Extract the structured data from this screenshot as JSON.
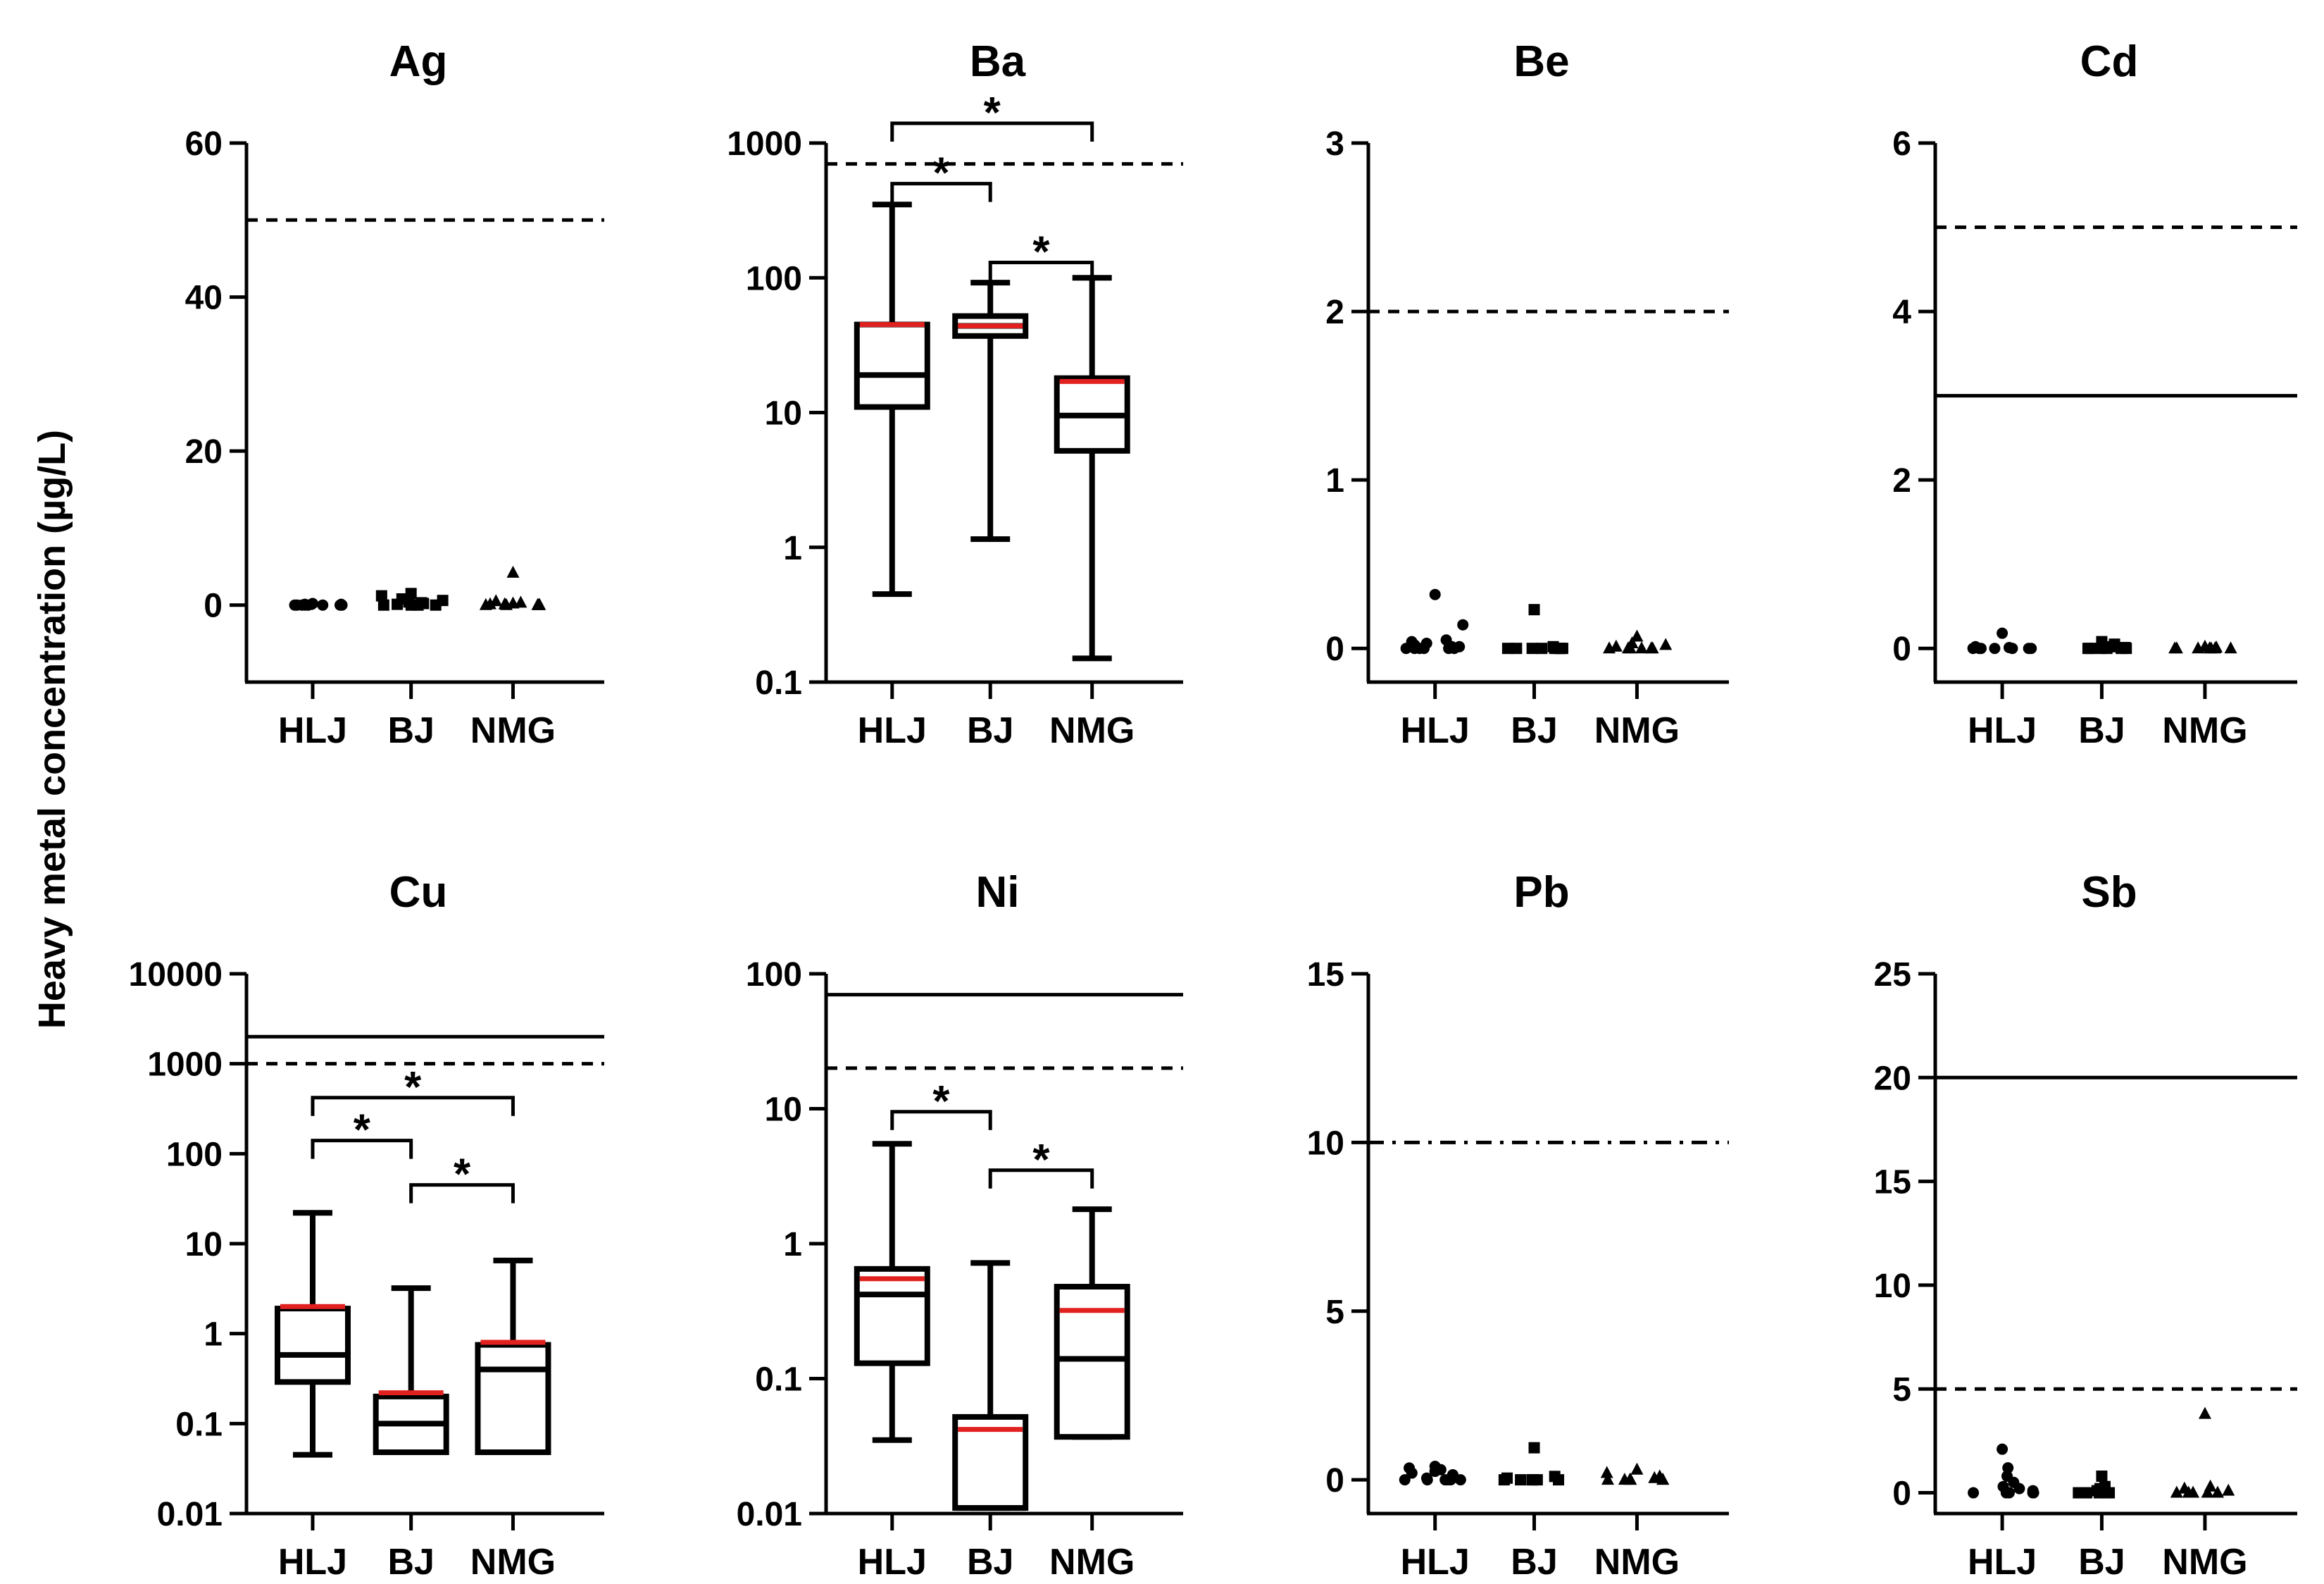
{
  "figure": {
    "ylabel": "Heavy metal concentration (µg/L)"
  },
  "chart_data": [
    {
      "type": "box",
      "title": "Ag",
      "scale": "linear",
      "ylim": [
        -10,
        60
      ],
      "yticks": [
        0,
        20,
        40,
        60
      ],
      "yticklabels": [
        "0",
        "20",
        "40",
        "60"
      ],
      "categories": [
        "HLJ",
        "BJ",
        "NMG"
      ],
      "reference_lines": [
        {
          "value": 50,
          "style": "dashed"
        }
      ],
      "boxes": [],
      "points": [
        {
          "category": "HLJ",
          "marker": "circle",
          "values": [
            0,
            0,
            0,
            0,
            0,
            0,
            0,
            0,
            0.1,
            0.1,
            0.1,
            0.2
          ]
        },
        {
          "category": "BJ",
          "marker": "square",
          "values": [
            0,
            0,
            0,
            0,
            0.1,
            0.2,
            0.3,
            0.4,
            0.6,
            0.8,
            1.2,
            1.5
          ]
        },
        {
          "category": "NMG",
          "marker": "triangle",
          "values": [
            0,
            0,
            0,
            0,
            0,
            0.1,
            0.1,
            0.2,
            0.3,
            0.5,
            4.2
          ]
        }
      ],
      "significance": []
    },
    {
      "type": "box",
      "title": "Ba",
      "scale": "log",
      "ylim": [
        0.1,
        1000
      ],
      "yticks": [
        0.1,
        1,
        10,
        100,
        1000
      ],
      "yticklabels": [
        "0.1",
        "1",
        "10",
        "100",
        "1000"
      ],
      "categories": [
        "HLJ",
        "BJ",
        "NMG"
      ],
      "reference_lines": [
        {
          "value": 700,
          "style": "dashed"
        }
      ],
      "boxes": [
        {
          "category": "HLJ",
          "min": 0.45,
          "q1": 11,
          "median": 19,
          "q3": 45,
          "max": 350,
          "mean": 45
        },
        {
          "category": "BJ",
          "min": 1.15,
          "q1": 37,
          "median": 44,
          "q3": 52,
          "max": 92,
          "mean": 44
        },
        {
          "category": "NMG",
          "min": 0.15,
          "q1": 5.2,
          "median": 9.5,
          "q3": 18,
          "max": 100,
          "mean": 17
        }
      ],
      "points": [],
      "significance": [
        {
          "from": "HLJ",
          "to": "BJ",
          "y": 500,
          "label": "*"
        },
        {
          "from": "BJ",
          "to": "NMG",
          "y": 130,
          "label": "*"
        },
        {
          "from": "HLJ",
          "to": "NMG",
          "y": 1400,
          "label": "*"
        }
      ]
    },
    {
      "type": "box",
      "title": "Be",
      "scale": "linear",
      "ylim": [
        -0.2,
        3
      ],
      "yticks": [
        0,
        1,
        2,
        3
      ],
      "yticklabels": [
        "0",
        "1",
        "2",
        "3"
      ],
      "categories": [
        "HLJ",
        "BJ",
        "NMG"
      ],
      "reference_lines": [
        {
          "value": 2,
          "style": "dashed"
        }
      ],
      "boxes": [],
      "points": [
        {
          "category": "HLJ",
          "marker": "circle",
          "values": [
            0,
            0,
            0,
            0,
            0,
            0,
            0.01,
            0.01,
            0.02,
            0.03,
            0.04,
            0.05,
            0.14,
            0.32
          ]
        },
        {
          "category": "BJ",
          "marker": "square",
          "values": [
            0,
            0,
            0,
            0,
            0,
            0,
            0,
            0,
            0.01,
            0.23
          ]
        },
        {
          "category": "NMG",
          "marker": "triangle",
          "values": [
            0,
            0,
            0,
            0,
            0,
            0,
            0.01,
            0.02,
            0.03,
            0.07
          ]
        }
      ],
      "significance": []
    },
    {
      "type": "box",
      "title": "Cd",
      "scale": "linear",
      "ylim": [
        -0.4,
        6
      ],
      "yticks": [
        0,
        2,
        4,
        6
      ],
      "yticklabels": [
        "0",
        "2",
        "4",
        "6"
      ],
      "categories": [
        "HLJ",
        "BJ",
        "NMG"
      ],
      "reference_lines": [
        {
          "value": 5,
          "style": "dashed"
        },
        {
          "value": 3,
          "style": "solid"
        }
      ],
      "boxes": [],
      "points": [
        {
          "category": "HLJ",
          "marker": "circle",
          "values": [
            0,
            0,
            0,
            0,
            0,
            0,
            0,
            0.01,
            0.02,
            0.18
          ]
        },
        {
          "category": "BJ",
          "marker": "square",
          "values": [
            0,
            0,
            0,
            0,
            0,
            0,
            0.01,
            0.02,
            0.05,
            0.08
          ]
        },
        {
          "category": "NMG",
          "marker": "triangle",
          "values": [
            0,
            0,
            0,
            0,
            0,
            0,
            0,
            0.01,
            0.02
          ]
        }
      ],
      "significance": []
    },
    {
      "type": "box",
      "title": "Cu",
      "scale": "log",
      "ylim": [
        0.01,
        10000
      ],
      "yticks": [
        0.01,
        0.1,
        1,
        10,
        100,
        1000,
        10000
      ],
      "yticklabels": [
        "0.01",
        "0.1",
        "1",
        "10",
        "100",
        "1000",
        "10000"
      ],
      "categories": [
        "HLJ",
        "BJ",
        "NMG"
      ],
      "reference_lines": [
        {
          "value": 2000,
          "style": "solid"
        },
        {
          "value": 1000,
          "style": "dashed"
        }
      ],
      "boxes": [
        {
          "category": "HLJ",
          "min": 0.045,
          "q1": 0.29,
          "median": 0.58,
          "q3": 1.9,
          "max": 22,
          "mean": 2
        },
        {
          "category": "BJ",
          "min": 0.048,
          "q1": 0.048,
          "median": 0.1,
          "q3": 0.2,
          "max": 3.2,
          "mean": 0.22
        },
        {
          "category": "NMG",
          "min": 0.048,
          "q1": 0.048,
          "median": 0.4,
          "q3": 0.75,
          "max": 6.5,
          "mean": 0.8
        }
      ],
      "points": [],
      "significance": [
        {
          "from": "HLJ",
          "to": "BJ",
          "y": 140,
          "label": "*"
        },
        {
          "from": "BJ",
          "to": "NMG",
          "y": 45,
          "label": "*"
        },
        {
          "from": "HLJ",
          "to": "NMG",
          "y": 420,
          "label": "*"
        }
      ]
    },
    {
      "type": "box",
      "title": "Ni",
      "scale": "log",
      "ylim": [
        0.01,
        100
      ],
      "yticks": [
        0.01,
        0.1,
        1,
        10,
        100
      ],
      "yticklabels": [
        "0.01",
        "0.1",
        "1",
        "10",
        "100"
      ],
      "categories": [
        "HLJ",
        "BJ",
        "NMG"
      ],
      "reference_lines": [
        {
          "value": 70,
          "style": "solid"
        },
        {
          "value": 20,
          "style": "dashed"
        }
      ],
      "boxes": [
        {
          "category": "HLJ",
          "min": 0.035,
          "q1": 0.13,
          "median": 0.42,
          "q3": 0.65,
          "max": 5.5,
          "mean": 0.55
        },
        {
          "category": "BJ",
          "min": 0.011,
          "q1": 0.011,
          "median": 0.011,
          "q3": 0.052,
          "max": 0.72,
          "mean": 0.042
        },
        {
          "category": "NMG",
          "min": 0.037,
          "q1": 0.037,
          "median": 0.14,
          "q3": 0.48,
          "max": 1.8,
          "mean": 0.32
        }
      ],
      "points": [],
      "significance": [
        {
          "from": "HLJ",
          "to": "BJ",
          "y": 9.5,
          "label": "*"
        },
        {
          "from": "BJ",
          "to": "NMG",
          "y": 3.5,
          "label": "*"
        }
      ]
    },
    {
      "type": "box",
      "title": "Pb",
      "scale": "linear",
      "ylim": [
        -1,
        15
      ],
      "yticks": [
        0,
        5,
        10,
        15
      ],
      "yticklabels": [
        "0",
        "5",
        "10",
        "15"
      ],
      "categories": [
        "HLJ",
        "BJ",
        "NMG"
      ],
      "reference_lines": [
        {
          "value": 10,
          "style": "dashdot"
        }
      ],
      "boxes": [],
      "points": [
        {
          "category": "HLJ",
          "marker": "circle",
          "values": [
            0,
            0,
            0,
            0,
            0,
            0,
            0.05,
            0.1,
            0.15,
            0.2,
            0.25,
            0.3,
            0.35,
            0.4
          ]
        },
        {
          "category": "BJ",
          "marker": "square",
          "values": [
            0,
            0,
            0,
            0,
            0,
            0,
            0.05,
            0.1,
            0.95
          ]
        },
        {
          "category": "NMG",
          "marker": "triangle",
          "values": [
            0,
            0,
            0,
            0,
            0,
            0,
            0.05,
            0.1,
            0.2,
            0.3
          ]
        }
      ],
      "significance": []
    },
    {
      "type": "box",
      "title": "Sb",
      "scale": "linear",
      "ylim": [
        -1,
        25
      ],
      "yticks": [
        0,
        5,
        10,
        15,
        20,
        25
      ],
      "yticklabels": [
        "0",
        "5",
        "10",
        "15",
        "20",
        "25"
      ],
      "categories": [
        "HLJ",
        "BJ",
        "NMG"
      ],
      "reference_lines": [
        {
          "value": 20,
          "style": "solid"
        },
        {
          "value": 5,
          "style": "dashed"
        }
      ],
      "boxes": [],
      "points": [
        {
          "category": "HLJ",
          "marker": "circle",
          "values": [
            0,
            0,
            0,
            0,
            0,
            0.1,
            0.2,
            0.3,
            0.5,
            0.8,
            1.2,
            2.1
          ]
        },
        {
          "category": "BJ",
          "marker": "square",
          "values": [
            0,
            0,
            0,
            0,
            0,
            0.1,
            0.2,
            0.3,
            0.8
          ]
        },
        {
          "category": "NMG",
          "marker": "triangle",
          "values": [
            0,
            0,
            0,
            0,
            0,
            0.1,
            0.2,
            0.3,
            3.8
          ]
        }
      ],
      "significance": []
    }
  ]
}
